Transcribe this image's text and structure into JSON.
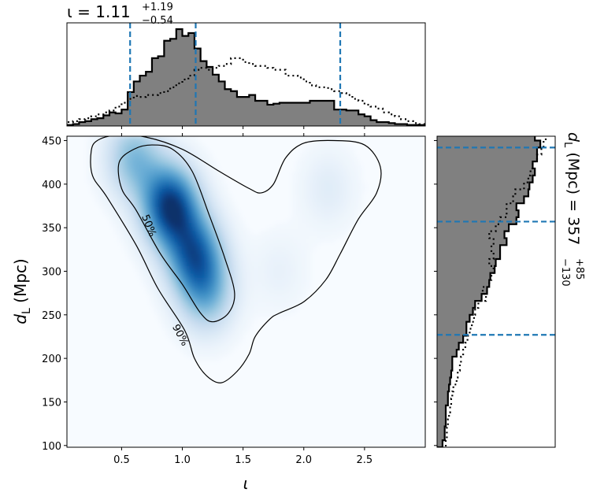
{
  "chart_data": [
    {
      "type": "heatmap",
      "panel": "main",
      "xlabel": "ι",
      "ylabel": "d_L (Mpc)",
      "xlim": [
        0.05,
        3.0
      ],
      "ylim": [
        98,
        455
      ],
      "xticks": [
        "0.5",
        "1.0",
        "1.5",
        "2.0",
        "2.5"
      ],
      "yticks": [
        "100",
        "150",
        "200",
        "250",
        "300",
        "350",
        "400",
        "450"
      ],
      "colormap": "Blues",
      "density_peaks": [
        {
          "iota": 0.9,
          "dL": 375,
          "weight": 1.0
        },
        {
          "iota": 1.1,
          "dL": 320,
          "weight": 0.75
        },
        {
          "iota": 1.2,
          "dL": 275,
          "weight": 0.45
        },
        {
          "iota": 0.6,
          "dL": 430,
          "weight": 0.45
        },
        {
          "iota": 2.2,
          "dL": 395,
          "weight": 0.12
        },
        {
          "iota": 1.8,
          "dL": 300,
          "weight": 0.08
        }
      ],
      "contours": [
        {
          "label": "50%",
          "points": [
            [
              0.75,
              445
            ],
            [
              0.6,
              440
            ],
            [
              0.48,
              425
            ],
            [
              0.5,
              395
            ],
            [
              0.62,
              370
            ],
            [
              0.82,
              320
            ],
            [
              1.0,
              285
            ],
            [
              1.15,
              252
            ],
            [
              1.25,
              242
            ],
            [
              1.38,
              252
            ],
            [
              1.43,
              275
            ],
            [
              1.35,
              315
            ],
            [
              1.22,
              365
            ],
            [
              1.08,
              415
            ],
            [
              0.92,
              440
            ]
          ]
        },
        {
          "label": "90%",
          "points": [
            [
              0.25,
              438
            ],
            [
              0.3,
              450
            ],
            [
              0.45,
              456
            ],
            [
              0.7,
              454
            ],
            [
              1.0,
              440
            ],
            [
              1.3,
              415
            ],
            [
              1.55,
              395
            ],
            [
              1.65,
              390
            ],
            [
              1.75,
              400
            ],
            [
              1.85,
              430
            ],
            [
              2.0,
              447
            ],
            [
              2.25,
              450
            ],
            [
              2.5,
              445
            ],
            [
              2.63,
              420
            ],
            [
              2.6,
              390
            ],
            [
              2.45,
              360
            ],
            [
              2.3,
              320
            ],
            [
              2.18,
              290
            ],
            [
              2.0,
              265
            ],
            [
              1.8,
              252
            ],
            [
              1.72,
              245
            ],
            [
              1.6,
              225
            ],
            [
              1.55,
              205
            ],
            [
              1.45,
              185
            ],
            [
              1.32,
              172
            ],
            [
              1.2,
              180
            ],
            [
              1.1,
              200
            ],
            [
              1.02,
              232
            ],
            [
              0.8,
              280
            ],
            [
              0.62,
              330
            ],
            [
              0.38,
              385
            ],
            [
              0.26,
              410
            ]
          ]
        }
      ]
    },
    {
      "type": "bar",
      "panel": "top-marginal",
      "title": "ι = 1.11",
      "title_sup": "+1.19",
      "title_sub": "−0.54",
      "xlim": [
        0.05,
        3.0
      ],
      "bin_start": 0.05,
      "bin_width": 0.05,
      "values": [
        0.01,
        0.02,
        0.04,
        0.05,
        0.07,
        0.08,
        0.11,
        0.14,
        0.13,
        0.17,
        0.35,
        0.46,
        0.52,
        0.56,
        0.7,
        0.72,
        0.88,
        0.9,
        1.0,
        0.93,
        0.96,
        0.8,
        0.67,
        0.61,
        0.53,
        0.46,
        0.38,
        0.36,
        0.3,
        0.3,
        0.32,
        0.26,
        0.26,
        0.22,
        0.23,
        0.24,
        0.24,
        0.24,
        0.24,
        0.24,
        0.26,
        0.26,
        0.26,
        0.26,
        0.17,
        0.17,
        0.16,
        0.16,
        0.12,
        0.1,
        0.06,
        0.04,
        0.04,
        0.03,
        0.02,
        0.02,
        0.01,
        0.01,
        0.01
      ],
      "prior": [
        0.04,
        0.05,
        0.07,
        0.08,
        0.1,
        0.12,
        0.14,
        0.16,
        0.2,
        0.24,
        0.28,
        0.31,
        0.3,
        0.32,
        0.32,
        0.34,
        0.36,
        0.4,
        0.44,
        0.48,
        0.52,
        0.58,
        0.6,
        0.58,
        0.6,
        0.62,
        0.64,
        0.7,
        0.7,
        0.66,
        0.64,
        0.62,
        0.62,
        0.6,
        0.58,
        0.58,
        0.52,
        0.52,
        0.5,
        0.46,
        0.42,
        0.4,
        0.4,
        0.38,
        0.36,
        0.34,
        0.32,
        0.28,
        0.26,
        0.22,
        0.2,
        0.18,
        0.14,
        0.12,
        0.1,
        0.07,
        0.05,
        0.03,
        0.02
      ],
      "dashed_lines": [
        0.57,
        1.11,
        2.3
      ]
    },
    {
      "type": "bar",
      "panel": "right-marginal",
      "orientation": "horizontal",
      "title": "d_L (Mpc) = 357",
      "title_sup": "+85",
      "title_sub": "−130",
      "ylim": [
        98,
        455
      ],
      "bin_start": 98,
      "bin_width": 8,
      "values": [
        0.05,
        0.07,
        0.07,
        0.08,
        0.08,
        0.08,
        0.1,
        0.1,
        0.11,
        0.12,
        0.13,
        0.14,
        0.14,
        0.18,
        0.2,
        0.24,
        0.27,
        0.27,
        0.3,
        0.33,
        0.35,
        0.41,
        0.46,
        0.48,
        0.49,
        0.53,
        0.54,
        0.58,
        0.58,
        0.64,
        0.62,
        0.66,
        0.73,
        0.75,
        0.73,
        0.8,
        0.84,
        0.85,
        0.88,
        0.9,
        0.88,
        0.92,
        0.92,
        0.95,
        0.9,
        0.85,
        0.8
      ],
      "prior": [
        0.08,
        0.09,
        0.09,
        0.1,
        0.11,
        0.12,
        0.13,
        0.14,
        0.15,
        0.18,
        0.19,
        0.21,
        0.22,
        0.24,
        0.26,
        0.28,
        0.3,
        0.32,
        0.34,
        0.35,
        0.38,
        0.45,
        0.42,
        0.48,
        0.5,
        0.52,
        0.48,
        0.52,
        0.5,
        0.52,
        0.48,
        0.54,
        0.58,
        0.64,
        0.64,
        0.7,
        0.72,
        0.8,
        0.84,
        0.86,
        0.88,
        0.92,
        0.96,
        0.98,
        1.0,
        0.96,
        0.98
      ],
      "dashed_lines": [
        227,
        357,
        442
      ]
    }
  ]
}
